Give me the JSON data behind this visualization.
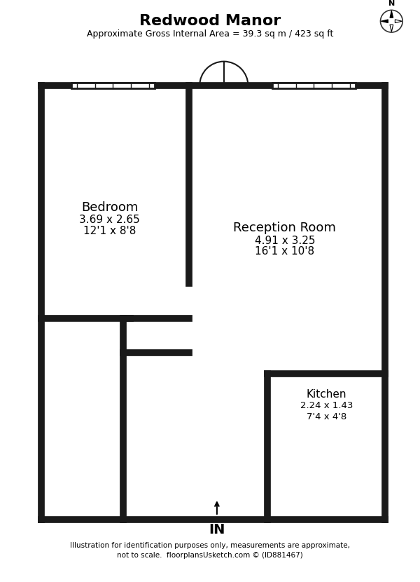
{
  "title": "Redwood Manor",
  "subtitle": "Approximate Gross Internal Area = 39.3 sq m / 423 sq ft",
  "footer": "Illustration for identification purposes only, measurements are approximate,\nnot to scale.  floorplansUsketch.com © (ID881467)",
  "bg_color": "#ffffff",
  "wall_color": "#1a1a1a",
  "room_fill": "#ffffff",
  "line_color": "#555555",
  "bedroom_label": "Bedroom",
  "bedroom_dims1": "3.69 x 2.65",
  "bedroom_dims2": "12'1 x 8'8",
  "reception_label": "Reception Room",
  "reception_dims1": "4.91 x 3.25",
  "reception_dims2": "16'1 x 10'8",
  "kitchen_label": "Kitchen",
  "kitchen_dims1": "2.24 x 1.43",
  "kitchen_dims2": "7'4 x 4'8",
  "in_label": "IN"
}
